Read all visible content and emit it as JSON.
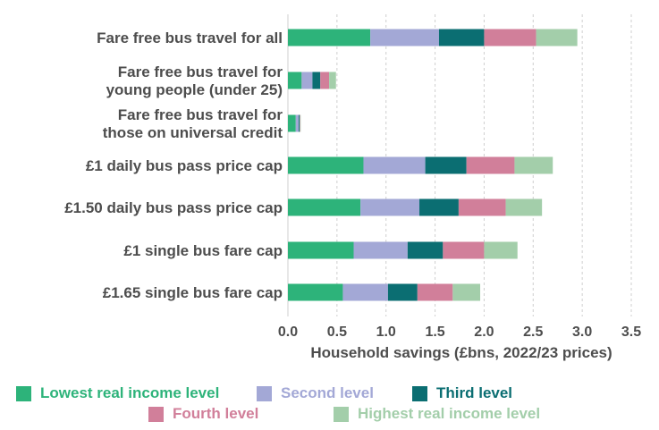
{
  "chart_data": {
    "type": "bar",
    "orientation": "horizontal",
    "stacked": true,
    "categories": [
      "Fare free bus travel for all",
      "Fare free bus travel for young people (under 25)",
      "Fare free bus travel for those on universal credit",
      "£1 daily bus pass price cap",
      "£1.50 daily bus pass price cap",
      "£1 single bus fare cap",
      "£1.65 single bus fare cap"
    ],
    "category_lines": [
      [
        "Fare free bus travel for all"
      ],
      [
        "Fare free bus travel for",
        "young people (under 25)"
      ],
      [
        "Fare free bus travel for",
        "those on universal credit"
      ],
      [
        "£1 daily bus pass price cap"
      ],
      [
        "£1.50 daily bus pass price cap"
      ],
      [
        "£1 single bus fare cap"
      ],
      [
        "£1.65 single bus fare cap"
      ]
    ],
    "series": [
      {
        "name": "Lowest real income level",
        "color": "#2db37a",
        "values": [
          0.84,
          0.14,
          0.08,
          0.77,
          0.74,
          0.67,
          0.56
        ]
      },
      {
        "name": "Second level",
        "color": "#a3a8d6",
        "values": [
          0.7,
          0.11,
          0.03,
          0.63,
          0.6,
          0.55,
          0.46
        ]
      },
      {
        "name": "Third level",
        "color": "#0b6e72",
        "values": [
          0.46,
          0.08,
          0.01,
          0.42,
          0.4,
          0.36,
          0.3
        ]
      },
      {
        "name": "Fourth level",
        "color": "#d17f9a",
        "values": [
          0.53,
          0.09,
          0.005,
          0.49,
          0.48,
          0.42,
          0.36
        ]
      },
      {
        "name": "Highest real income level",
        "color": "#a3ceaa",
        "values": [
          0.42,
          0.07,
          0.005,
          0.39,
          0.37,
          0.34,
          0.28
        ]
      }
    ],
    "xlabel": "Household savings (£bns, 2022/23 prices)",
    "ylabel": "",
    "xlim": [
      0,
      3.5
    ],
    "xticks": [
      "0.0",
      "0.5",
      "1.0",
      "1.5",
      "2.0",
      "2.5",
      "3.0",
      "3.5"
    ],
    "xtick_values": [
      0,
      0.5,
      1.0,
      1.5,
      2.0,
      2.5,
      3.0,
      3.5
    ],
    "grid": "vertical dashed",
    "legend_position": "bottom",
    "title": ""
  }
}
